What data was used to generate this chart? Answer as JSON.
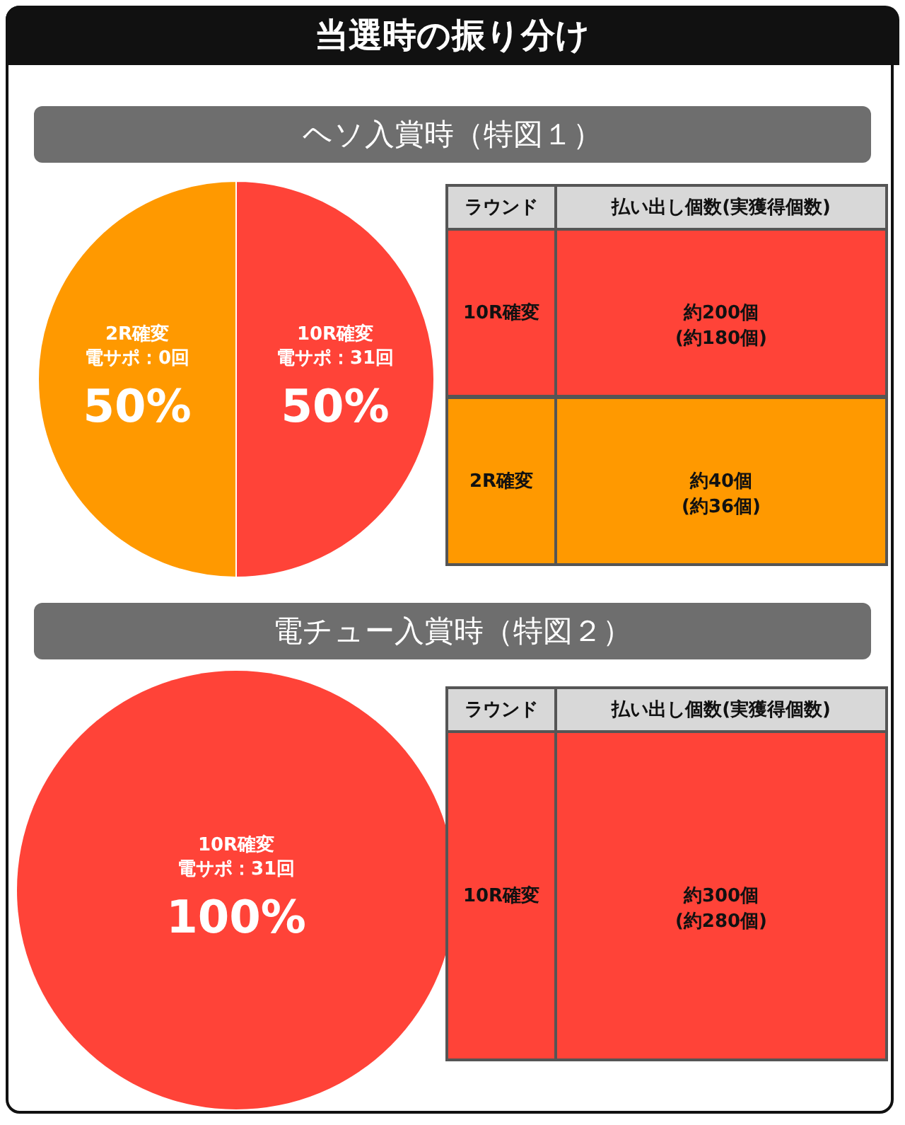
{
  "chart_data": [
    {
      "type": "pie",
      "title": "当選時の振り分け",
      "subtitle": "ヘソ入賞時（特図１）",
      "categories": [
        "10R確変",
        "2R確変"
      ],
      "values": [
        50,
        50
      ],
      "colors": [
        "#ff4338",
        "#ff9900"
      ],
      "value_labels": [
        "50%",
        "50%"
      ],
      "annotations": [
        "電サポ：31回",
        "電サポ：0回"
      ]
    },
    {
      "type": "other",
      "annotations": [
        "ラウンド",
        "払い出し個数(実獲得個数)",
        "10R確変",
        "約200個\n(約180個)",
        "2R確変",
        "約40個\n(約36個)"
      ],
      "colors": [
        "#ff4338",
        "#ff9900"
      ]
    },
    {
      "type": "pie",
      "subtitle": "電チュー入賞時（特図２）",
      "categories": [
        "10R確変"
      ],
      "values": [
        100
      ],
      "colors": [
        "#ff4338"
      ],
      "value_labels": [
        "100%"
      ],
      "annotations": [
        "電サポ：31回"
      ]
    },
    {
      "type": "other",
      "annotations": [
        "ラウンド",
        "払い出し個数(実獲得個数)",
        "10R確変",
        "約300個\n(約280個)"
      ],
      "colors": [
        "#ff4338"
      ]
    }
  ]
}
